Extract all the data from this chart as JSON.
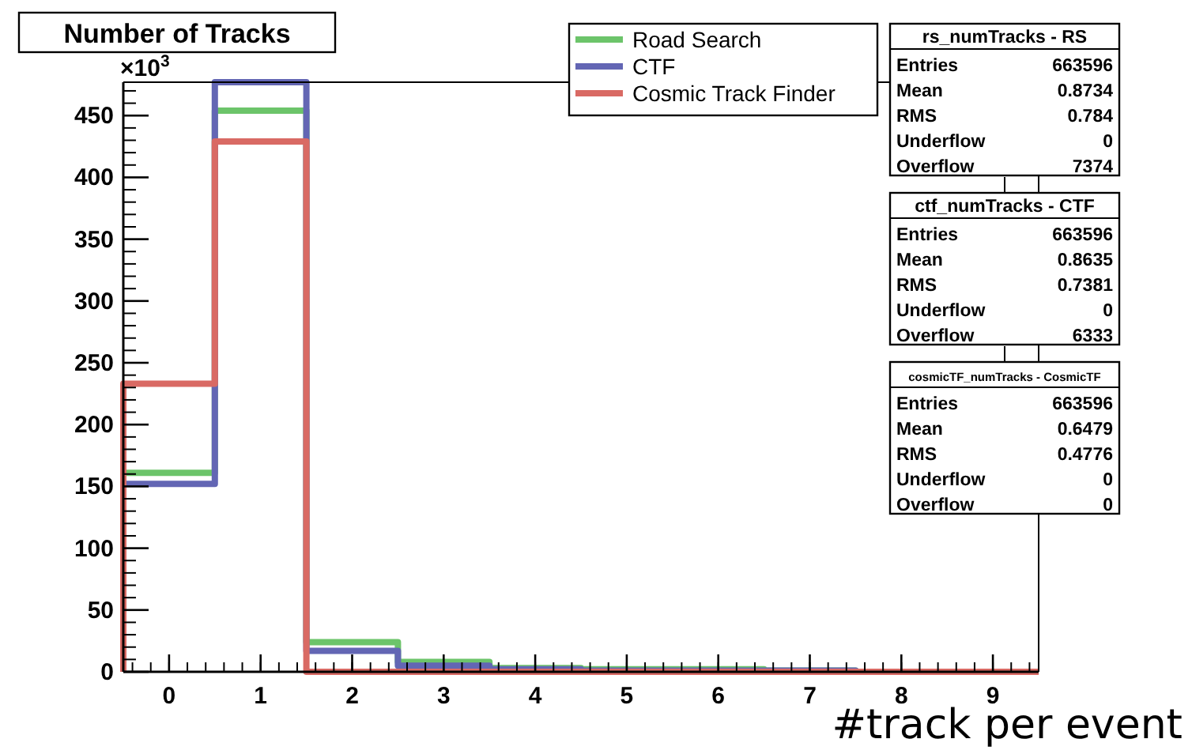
{
  "chart_data": {
    "type": "histogram",
    "title": "Number of Tracks",
    "ylabel": "×10$^{3}$",
    "xlabel": "#track per event",
    "bins": [
      -0.5,
      0.5,
      1.5,
      2.5,
      3.5,
      4.5,
      5.5,
      6.5,
      7.5,
      8.5,
      9.5
    ],
    "series": [
      {
        "name": "Road Search",
        "color": "#6cc46a",
        "values": [
          161,
          454,
          24,
          8,
          3,
          2,
          2,
          1,
          0,
          0
        ]
      },
      {
        "name": "CTF",
        "color": "#6366b4",
        "values": [
          152,
          477,
          17,
          5,
          2,
          1,
          1,
          1,
          0,
          0
        ]
      },
      {
        "name": "Cosmic Track Finder",
        "color": "#d96a64",
        "values": [
          233,
          429,
          0,
          0,
          0,
          0,
          0,
          0,
          0,
          0
        ]
      }
    ],
    "xlim": [
      -0.5,
      9.5
    ],
    "ylim": [
      0,
      477
    ],
    "xticks": [
      0,
      1,
      2,
      3,
      4,
      5,
      6,
      7,
      8,
      9
    ],
    "yticks": [
      0,
      50,
      100,
      150,
      200,
      250,
      300,
      350,
      400,
      450
    ],
    "legend": "top right",
    "annotations": [
      "rs_numTracks - RS",
      "Entries",
      "663596",
      "Mean",
      "0.8734",
      "RMS",
      "0.784",
      "Underflow",
      "0",
      "Overflow",
      "7374",
      "ctf_numTracks - CTF",
      "Entries",
      "663596",
      "Mean",
      "0.8635",
      "RMS",
      "0.7381",
      "Underflow",
      "0",
      "Overflow",
      "6333",
      "cosmicTF_numTracks - CosmicTF",
      "Entries",
      "663596",
      "Mean",
      "0.6479",
      "RMS",
      "0.4776",
      "Underflow",
      "0",
      "Overflow",
      "0"
    ]
  }
}
